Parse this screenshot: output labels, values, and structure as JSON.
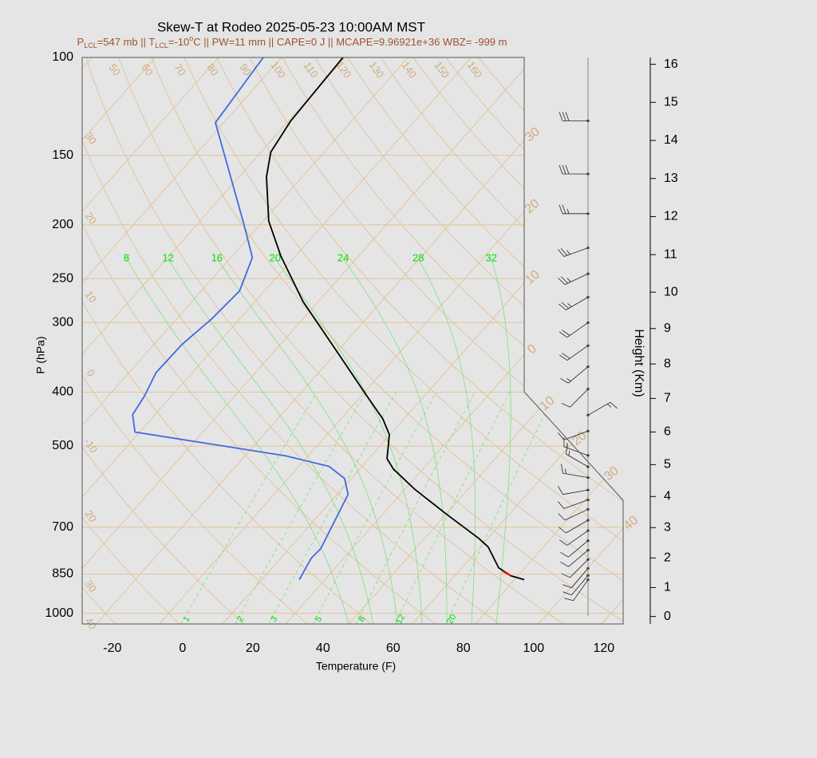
{
  "chart_data": {
    "type": "skewt",
    "title": "Skew-T at Rodeo 2025-05-23 10:00AM MST",
    "subtitle_parts": [
      {
        "text": "P"
      },
      {
        "text": "LCL",
        "sub": true
      },
      {
        "text": "=547 mb || T"
      },
      {
        "text": "LCL",
        "sub": true
      },
      {
        "text": "=-10"
      },
      {
        "text": "o",
        "sup": true
      },
      {
        "text": "C || PW=11 mm || CAPE=0 J || MCAPE=9.96921e+36 WBZ= -999 m"
      }
    ],
    "subtitle_color": "#a0522d",
    "x_label": "Temperature (F)",
    "y_label": "P (hPa)",
    "y2_label": "Height (Km)",
    "xlim": [
      -28.6,
      125.5
    ],
    "xticks": [
      -20,
      0,
      20,
      40,
      60,
      80,
      100,
      120
    ],
    "ylim": [
      1045,
      100
    ],
    "y_log": true,
    "yticks": [
      100,
      150,
      200,
      250,
      300,
      400,
      500,
      700,
      850,
      1000
    ],
    "y2lim": [
      -0.26,
      16.18
    ],
    "y2ticks": [
      0,
      1,
      2,
      3,
      4,
      5,
      6,
      7,
      8,
      9,
      10,
      11,
      12,
      13,
      14,
      15,
      16
    ],
    "series": [
      {
        "color": "#000000",
        "pressure": [
          870,
          856,
          828,
          789,
          760,
          733,
          664,
          599,
          550,
          527,
          477,
          447,
          407,
          334,
          275,
          228,
          197,
          164,
          148,
          130,
          100
        ],
        "temperature": [
          88.8,
          84.0,
          78.5,
          73.9,
          70.3,
          65.4,
          50.3,
          35.0,
          23.6,
          19.2,
          13.8,
          8.0,
          -2.2,
          -23.4,
          -44.3,
          -62.0,
          -74.4,
          -86.2,
          -91.2,
          -93.4,
          -94.5
        ]
      },
      {
        "color": "#4169e1",
        "pressure": [
          870,
          796,
          765,
          611,
          572,
          544,
          521,
          472,
          439,
          408,
          369,
          328,
          296,
          263,
          229,
          199,
          131,
          100
        ],
        "temperature": [
          24.7,
          22.7,
          23.0,
          17.1,
          12.1,
          4.6,
          -10.3,
          -59.3,
          -64.4,
          -65.6,
          -68.3,
          -68.0,
          -66.0,
          -65.1,
          -69.9,
          -80.9,
          -114.4,
          -117.2
        ]
      },
      {
        "color": "#ff0000",
        "pressure": [
          856,
          840
        ],
        "temperature": [
          84.0,
          80.5
        ]
      }
    ],
    "isotherms": [
      -110,
      -100,
      -90,
      -80,
      -70,
      -60,
      -50,
      -40,
      -30,
      -20,
      -10,
      0,
      10,
      20,
      30,
      40,
      50
    ],
    "isotherm_labels": [
      {
        "value": -30,
        "label": "30"
      },
      {
        "value": -20,
        "label": "20"
      },
      {
        "value": -10,
        "label": "10"
      },
      0,
      10,
      20,
      30,
      40
    ],
    "dry_adiabats": [
      {
        "value": -30,
        "label": "30"
      },
      {
        "value": -20,
        "label": "20"
      },
      -10,
      0,
      10,
      20,
      30,
      40,
      50,
      60,
      70,
      80,
      90,
      100,
      110,
      120,
      130,
      140,
      150,
      160
    ],
    "moist_adiabats": [
      8,
      12,
      16,
      20,
      24,
      28,
      32
    ],
    "mixing_ratios": [
      1,
      2,
      3,
      5,
      8,
      12,
      20
    ],
    "background_line_color": "#e2c49c",
    "background_label_color": "#d2aa7c",
    "moist_line_color": "#7ee07e",
    "moist_label_color": "#00e000",
    "winds": {
      "pressure": [
        130,
        162,
        191,
        220,
        245,
        270,
        300,
        330,
        360,
        395,
        440,
        470,
        520,
        545,
        570,
        600,
        625,
        650,
        680,
        710,
        740,
        770,
        800,
        830,
        855,
        870
      ],
      "direction": [
        270,
        270,
        270,
        250,
        245,
        240,
        235,
        235,
        230,
        225,
        60,
        250,
        290,
        300,
        280,
        260,
        250,
        245,
        240,
        235,
        230,
        230,
        225,
        220,
        220,
        215
      ],
      "speed": [
        30,
        30,
        25,
        25,
        25,
        25,
        20,
        20,
        15,
        10,
        15,
        10,
        15,
        15,
        15,
        10,
        10,
        10,
        10,
        10,
        10,
        10,
        10,
        10,
        10,
        10
      ]
    }
  }
}
